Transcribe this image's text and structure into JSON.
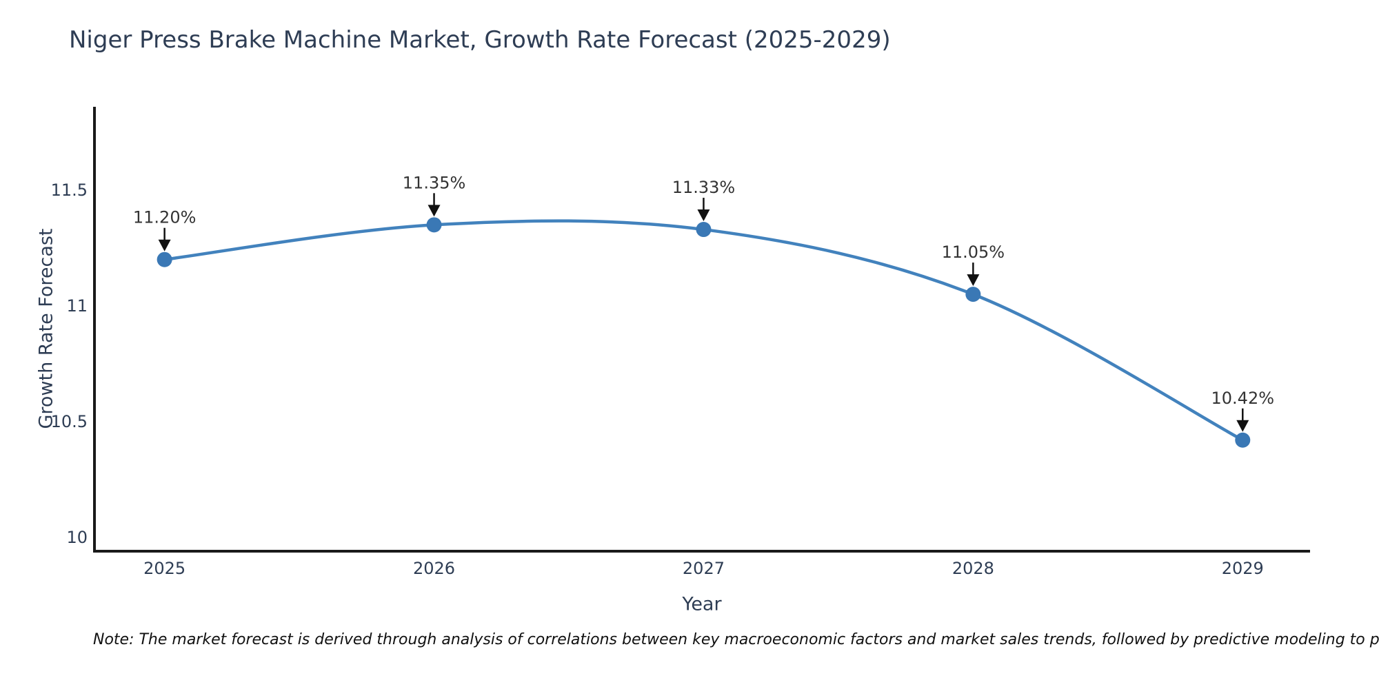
{
  "title": "Niger Press Brake Machine Market, Growth Rate Forecast (2025-2029)",
  "note": "Note: The market forecast is derived through analysis of correlations between key macroeconomic factors and market sales trends, followed by predictive modeling to project future sal",
  "colors": {
    "background": "#ffffff",
    "title_text": "#2e3d54",
    "tick_text": "#2e3d54",
    "axis_line": "#1a1a1a",
    "series_line": "#4282bd",
    "marker_fill": "#3a78b5",
    "annotation_text": "#333333",
    "arrow": "#111111",
    "note_text": "#111111"
  },
  "chart_data": {
    "type": "line",
    "title": "Niger Press Brake Machine Market, Growth Rate Forecast (2025-2029)",
    "x": [
      2025,
      2026,
      2027,
      2028,
      2029
    ],
    "categories": [
      "2025",
      "2026",
      "2027",
      "2028",
      "2029"
    ],
    "series": [
      {
        "name": "Growth Rate Forecast",
        "values": [
          11.2,
          11.35,
          11.33,
          11.05,
          10.42
        ],
        "point_labels": [
          "11.20%",
          "11.35%",
          "11.33%",
          "11.05%",
          "10.42%"
        ]
      }
    ],
    "xlabel": "Year",
    "ylabel": "Growth Rate Forecast",
    "y_ticks": [
      10,
      10.5,
      11,
      11.5
    ],
    "y_tick_labels": [
      "10",
      "10.5",
      "11",
      "11.5"
    ],
    "xlim": [
      2024.74,
      2029.25
    ],
    "ylim": [
      9.94,
      11.86
    ],
    "grid": false,
    "legend": false,
    "line_shape": "spline",
    "markers": true,
    "annotations": "value-labels-with-down-arrows"
  }
}
